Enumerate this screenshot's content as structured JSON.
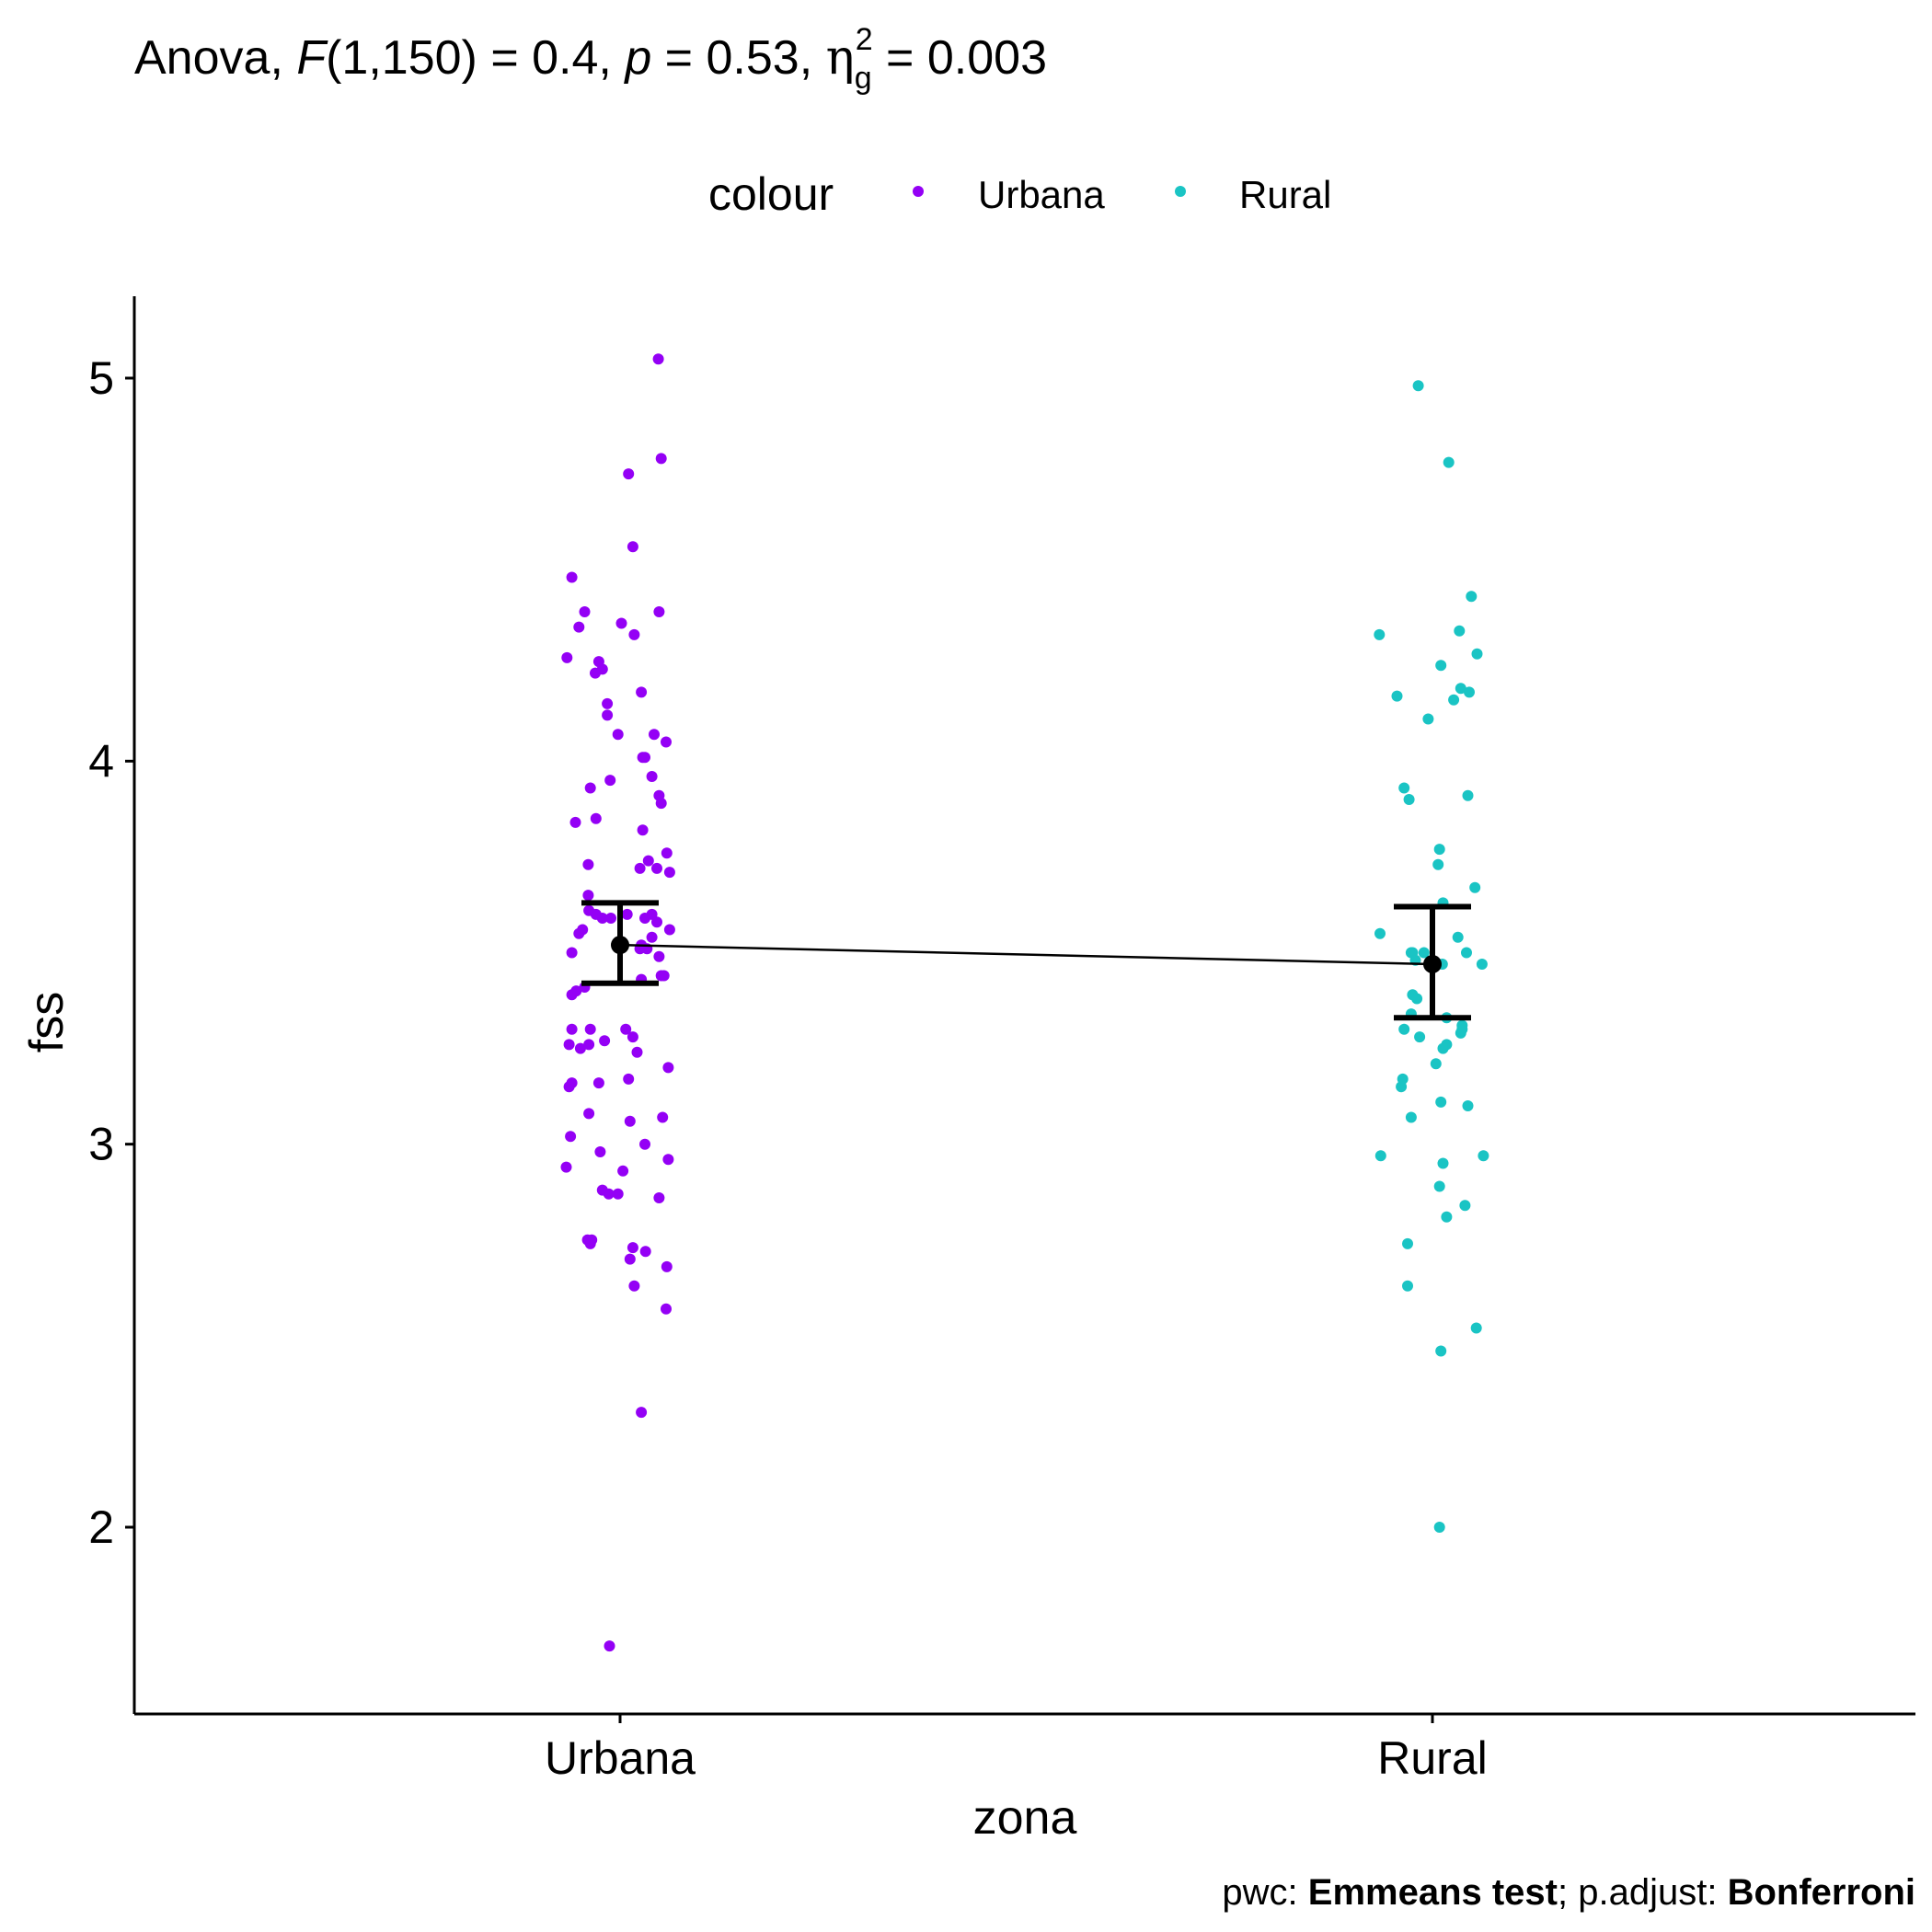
{
  "chart_data": {
    "type": "scatter",
    "subtitle": {
      "prefix": "Anova, ",
      "f_symbol": "F",
      "df": "(1,150) = 0.4, ",
      "p_symbol": "p",
      "p_value": " = 0.53, ",
      "eta_symbol": "η",
      "eta_sub": "g",
      "eta_sup": "2",
      "eta_value": " = 0.003"
    },
    "legend": {
      "title": "colour",
      "position": "top",
      "entries": [
        {
          "label": "Urbana",
          "color": "#9400F5"
        },
        {
          "label": "Rural",
          "color": "#1AC4C4"
        }
      ]
    },
    "xlabel": "zona",
    "ylabel": "fss",
    "categories": [
      "Urbana",
      "Rural"
    ],
    "ylim": [
      1.52,
      5.22
    ],
    "yticks": [
      2,
      3,
      4,
      5
    ],
    "grid": false,
    "series": [
      {
        "name": "Urbana",
        "color": "#9400F5",
        "mean": 3.52,
        "ci_low": 3.42,
        "ci_high": 3.63,
        "points": [
          [
            0.054,
            5.05
          ],
          [
            0.058,
            4.79
          ],
          [
            0.012,
            4.75
          ],
          [
            0.018,
            4.56
          ],
          [
            -0.068,
            4.48
          ],
          [
            -0.05,
            4.39
          ],
          [
            0.055,
            4.39
          ],
          [
            -0.058,
            4.35
          ],
          [
            0.002,
            4.36
          ],
          [
            0.02,
            4.33
          ],
          [
            -0.075,
            4.27
          ],
          [
            -0.03,
            4.26
          ],
          [
            -0.035,
            4.23
          ],
          [
            -0.025,
            4.24
          ],
          [
            0.03,
            4.18
          ],
          [
            -0.018,
            4.15
          ],
          [
            -0.018,
            4.12
          ],
          [
            0.048,
            4.07
          ],
          [
            -0.003,
            4.07
          ],
          [
            0.065,
            4.05
          ],
          [
            0.032,
            4.01
          ],
          [
            0.035,
            4.01
          ],
          [
            0.045,
            3.96
          ],
          [
            -0.014,
            3.95
          ],
          [
            -0.042,
            3.93
          ],
          [
            0.055,
            3.91
          ],
          [
            0.058,
            3.89
          ],
          [
            -0.034,
            3.85
          ],
          [
            -0.063,
            3.84
          ],
          [
            0.032,
            3.82
          ],
          [
            0.066,
            3.76
          ],
          [
            0.04,
            3.74
          ],
          [
            -0.045,
            3.73
          ],
          [
            0.028,
            3.72
          ],
          [
            0.052,
            3.72
          ],
          [
            0.07,
            3.71
          ],
          [
            -0.045,
            3.65
          ],
          [
            -0.044,
            3.61
          ],
          [
            -0.034,
            3.6
          ],
          [
            0.01,
            3.6
          ],
          [
            0.045,
            3.6
          ],
          [
            -0.025,
            3.59
          ],
          [
            -0.013,
            3.59
          ],
          [
            0.035,
            3.59
          ],
          [
            0.052,
            3.58
          ],
          [
            0.07,
            3.56
          ],
          [
            -0.053,
            3.56
          ],
          [
            -0.058,
            3.55
          ],
          [
            0.045,
            3.54
          ],
          [
            0.03,
            3.52
          ],
          [
            0.028,
            3.51
          ],
          [
            0.038,
            3.51
          ],
          [
            -0.068,
            3.5
          ],
          [
            0.055,
            3.49
          ],
          [
            0.062,
            3.44
          ],
          [
            0.058,
            3.44
          ],
          [
            0.03,
            3.43
          ],
          [
            -0.05,
            3.41
          ],
          [
            -0.062,
            3.4
          ],
          [
            -0.068,
            3.39
          ],
          [
            0.008,
            3.3
          ],
          [
            -0.068,
            3.3
          ],
          [
            -0.042,
            3.3
          ],
          [
            -0.022,
            3.27
          ],
          [
            0.018,
            3.28
          ],
          [
            -0.072,
            3.26
          ],
          [
            -0.056,
            3.25
          ],
          [
            -0.044,
            3.26
          ],
          [
            0.024,
            3.24
          ],
          [
            0.068,
            3.2
          ],
          [
            0.012,
            3.17
          ],
          [
            -0.068,
            3.16
          ],
          [
            -0.072,
            3.15
          ],
          [
            -0.03,
            3.16
          ],
          [
            -0.044,
            3.08
          ],
          [
            0.06,
            3.07
          ],
          [
            0.014,
            3.06
          ],
          [
            -0.07,
            3.02
          ],
          [
            0.035,
            3.0
          ],
          [
            -0.028,
            2.98
          ],
          [
            0.068,
            2.96
          ],
          [
            -0.076,
            2.94
          ],
          [
            0.004,
            2.93
          ],
          [
            -0.025,
            2.88
          ],
          [
            -0.016,
            2.87
          ],
          [
            -0.003,
            2.87
          ],
          [
            0.055,
            2.86
          ],
          [
            -0.046,
            2.75
          ],
          [
            -0.04,
            2.75
          ],
          [
            -0.042,
            2.74
          ],
          [
            0.018,
            2.73
          ],
          [
            0.036,
            2.72
          ],
          [
            0.014,
            2.7
          ],
          [
            0.066,
            2.68
          ],
          [
            0.02,
            2.63
          ],
          [
            0.065,
            2.57
          ],
          [
            0.03,
            2.3
          ],
          [
            -0.015,
            1.69
          ]
        ]
      },
      {
        "name": "Rural",
        "color": "#1AC4C4",
        "mean": 3.47,
        "ci_low": 3.33,
        "ci_high": 3.62,
        "points": [
          [
            -0.02,
            4.98
          ],
          [
            0.023,
            4.78
          ],
          [
            0.055,
            4.43
          ],
          [
            0.038,
            4.34
          ],
          [
            -0.075,
            4.33
          ],
          [
            0.063,
            4.28
          ],
          [
            0.012,
            4.25
          ],
          [
            -0.05,
            4.17
          ],
          [
            0.04,
            4.19
          ],
          [
            0.052,
            4.18
          ],
          [
            0.03,
            4.16
          ],
          [
            -0.006,
            4.11
          ],
          [
            -0.04,
            3.93
          ],
          [
            -0.033,
            3.9
          ],
          [
            0.05,
            3.91
          ],
          [
            0.01,
            3.77
          ],
          [
            0.008,
            3.73
          ],
          [
            0.06,
            3.67
          ],
          [
            0.015,
            3.63
          ],
          [
            -0.074,
            3.55
          ],
          [
            0.036,
            3.54
          ],
          [
            -0.03,
            3.5
          ],
          [
            -0.028,
            3.5
          ],
          [
            -0.012,
            3.5
          ],
          [
            -0.024,
            3.48
          ],
          [
            0.014,
            3.47
          ],
          [
            0.048,
            3.5
          ],
          [
            0.07,
            3.47
          ],
          [
            -0.028,
            3.39
          ],
          [
            -0.022,
            3.38
          ],
          [
            -0.03,
            3.34
          ],
          [
            0.02,
            3.33
          ],
          [
            -0.04,
            3.3
          ],
          [
            0.042,
            3.31
          ],
          [
            0.04,
            3.29
          ],
          [
            0.042,
            3.3
          ],
          [
            -0.018,
            3.28
          ],
          [
            0.02,
            3.26
          ],
          [
            0.015,
            3.25
          ],
          [
            0.005,
            3.21
          ],
          [
            -0.042,
            3.17
          ],
          [
            -0.044,
            3.15
          ],
          [
            -0.03,
            3.07
          ],
          [
            0.012,
            3.11
          ],
          [
            0.05,
            3.1
          ],
          [
            0.072,
            2.97
          ],
          [
            -0.073,
            2.97
          ],
          [
            0.015,
            2.95
          ],
          [
            0.01,
            2.89
          ],
          [
            0.046,
            2.84
          ],
          [
            0.02,
            2.81
          ],
          [
            -0.035,
            2.74
          ],
          [
            -0.035,
            2.63
          ],
          [
            0.062,
            2.52
          ],
          [
            0.012,
            2.46
          ],
          [
            0.01,
            2.0
          ]
        ]
      }
    ],
    "caption": {
      "pwc_label": "pwc: ",
      "pwc_value": "Emmeans test",
      "sep": "; p.adjust: ",
      "adjust_value": "Bonferroni"
    }
  }
}
